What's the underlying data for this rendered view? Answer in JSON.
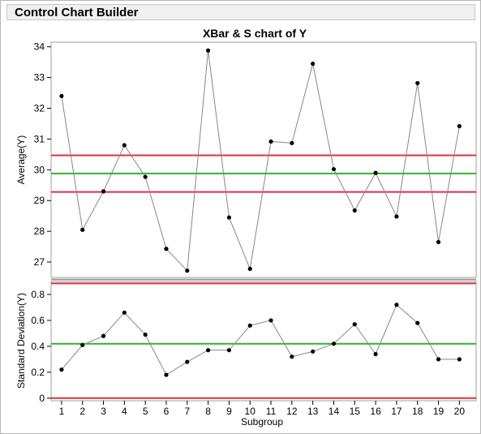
{
  "window": {
    "title": "Control Chart Builder"
  },
  "chart_data": {
    "type": "line",
    "title": "XBar & S chart of Y",
    "xlabel": "Subgroup",
    "x": [
      1,
      2,
      3,
      4,
      5,
      6,
      7,
      8,
      9,
      10,
      11,
      12,
      13,
      14,
      15,
      16,
      17,
      18,
      19,
      20
    ],
    "panels": [
      {
        "name": "xbar",
        "ylabel": "Average(Y)",
        "ylim": [
          26.5,
          34.15
        ],
        "yticks": [
          27,
          28,
          29,
          30,
          31,
          32,
          33,
          34
        ],
        "values": [
          32.4,
          28.05,
          29.3,
          30.8,
          29.77,
          27.43,
          26.72,
          33.88,
          28.45,
          26.78,
          30.92,
          30.87,
          33.45,
          30.02,
          28.68,
          29.9,
          28.48,
          32.82,
          27.65,
          31.42
        ],
        "limits": {
          "ucl": 30.47,
          "center": 29.88,
          "lcl": 29.28
        },
        "colors": {
          "ucl": "#e0303f",
          "center": "#2db52d",
          "lcl": "#e0303f",
          "series": "#888888",
          "marker": "#000000"
        }
      },
      {
        "name": "s",
        "ylabel": "Standard Deviation(Y)",
        "ylim": [
          -0.02,
          0.9
        ],
        "yticks": [
          0,
          0.2,
          0.4,
          0.6,
          0.8
        ],
        "values": [
          0.22,
          0.41,
          0.48,
          0.66,
          0.49,
          0.18,
          0.28,
          0.37,
          0.37,
          0.56,
          0.6,
          0.32,
          0.36,
          0.42,
          0.57,
          0.34,
          0.72,
          0.58,
          0.3,
          0.3
        ],
        "limits": {
          "ucl": 0.885,
          "center": 0.42,
          "lcl": 0.0
        },
        "colors": {
          "ucl": "#e0303f",
          "center": "#2db52d",
          "lcl": "#e0303f",
          "series": "#888888",
          "marker": "#000000"
        }
      }
    ],
    "grid": false
  }
}
